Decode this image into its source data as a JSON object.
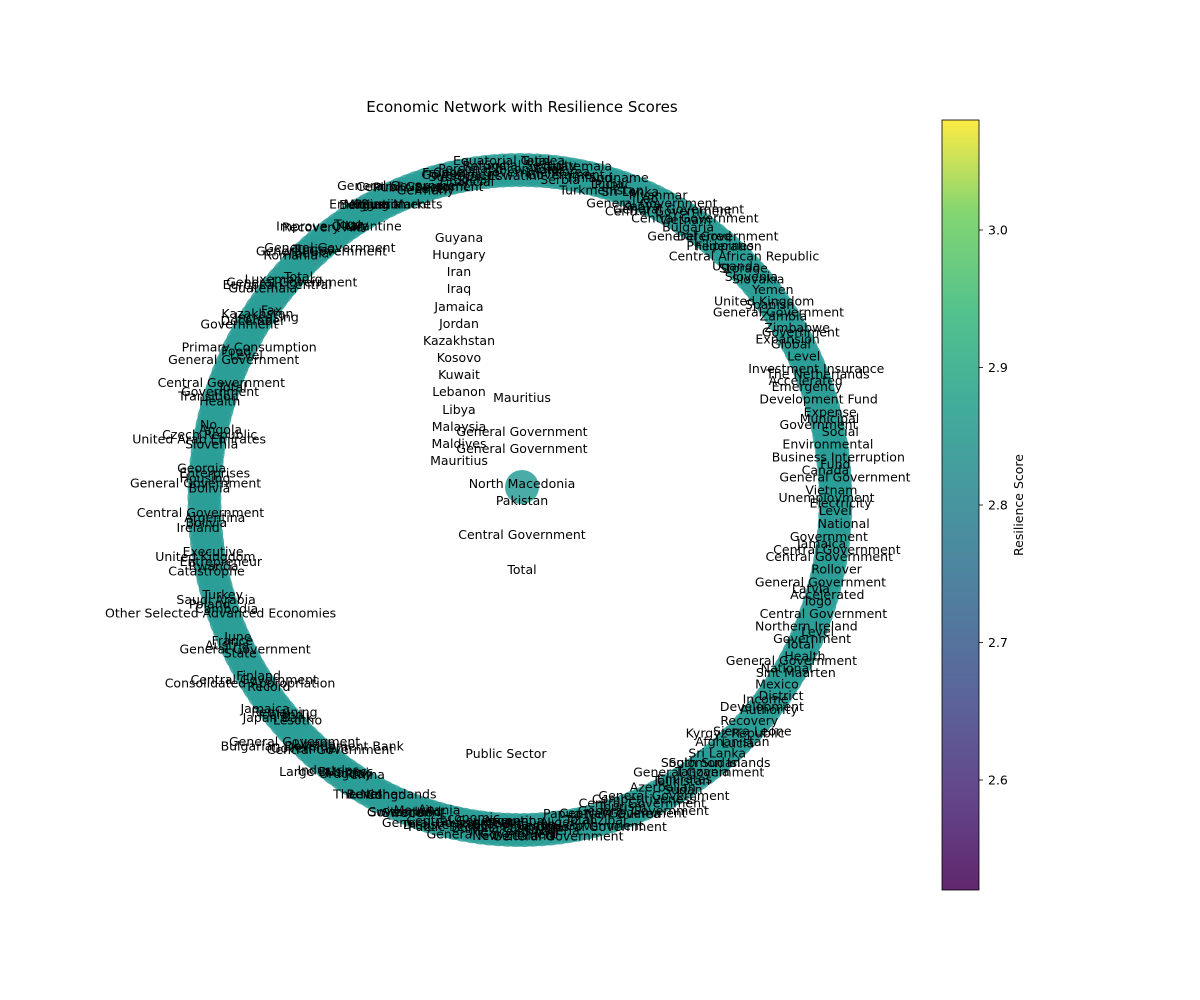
{
  "chart_data": {
    "type": "network",
    "title": "Economic Network with Resilience Scores",
    "layout": "circular",
    "node_color": "#2a9d96",
    "colorbar": {
      "label": "Resilience Score",
      "range": [
        2.52,
        3.08
      ],
      "ticks": [
        "2.6",
        "2.7",
        "2.8",
        "2.9",
        "3.0"
      ],
      "tick_values": [
        2.6,
        2.7,
        2.8,
        2.9,
        3.0
      ],
      "colormap": "viridis"
    },
    "ring_labels": [
      "Equatorial Guinea",
      "Eswatini",
      "Central Government",
      "Personal Income Tax",
      "Refund",
      "Financial",
      "Social",
      "Subtotal",
      "Government",
      "France",
      "Germany",
      "Level",
      "Public Sector",
      "Central Government",
      "General Government",
      "Emerging Markets",
      "Government",
      "Mitigation",
      "Russia",
      "Belgium",
      "Togo",
      "Italy",
      "Improve Quarantine",
      "Recovery Aid",
      "General Government",
      "Tunisia",
      "General Government",
      "Albania",
      "Romania",
      "Total",
      "Luxembourg",
      "General Government",
      "European Central",
      "Guatemala",
      "Fax",
      "Kazakhstan",
      "Increasing",
      "December",
      "Government",
      "Primary Consumption",
      "Food",
      "Level",
      "General Government",
      "Central Government",
      "Total",
      "Government",
      "Transition",
      "Health",
      "No",
      "Angola",
      "Czech Republic",
      "United Arab Emirates",
      "Slovenia",
      "Georgia",
      "Enterprises",
      "Housing",
      "General Government",
      "Bolivia",
      "Central Government",
      "Argentina",
      "Bolivia",
      "Ireland",
      "Executive",
      "United Kingdom",
      "Entrepreneur",
      "Rwanda",
      "Catastrophe",
      "Turkey",
      "Saudi Arabia",
      "Poland",
      "Cambodia",
      "Other Selected Advanced Economies",
      "June",
      "France",
      "Austria",
      "General Government",
      "State",
      "Finland",
      "Central Government",
      "Consolidated Appropriation",
      "Record",
      "Jamaica",
      "Remaining",
      "Iceland",
      "Japan Bank",
      "Lesotho",
      "General Government",
      "Liberia",
      "Bulgarian Development Bank",
      "Government",
      "Central Government",
      "Industries",
      "Large Business",
      "Malawi",
      "Uruguay",
      "China",
      "Level",
      "Benin",
      "Congo",
      "The Netherlands",
      "Sweden",
      "Government",
      "Switzerland",
      "Mauritania",
      "An",
      "Public Sector",
      "Disaster Relief",
      "General Government",
      "Central Government",
      "Economic",
      "General Government",
      "Mexico",
      "Burkina Faso",
      "Scandinavian",
      "Argentina",
      "New Zealand",
      "Kiribati",
      "Philippines",
      "Niger",
      "General Government",
      "Nigeria",
      "Central Government",
      "Total",
      "Papua New Guinea",
      "General Government",
      "Zanzibar",
      "Central Government",
      "Tourism",
      "Competitiveness",
      "General Government",
      "Central Government",
      "General Government",
      "Azerbaijan",
      "Emirates",
      "Sudan",
      "Tajikistan",
      "Tanzania",
      "South Sudan",
      "General Government",
      "Solomon Islands",
      "Sri Lanka",
      "Lucia",
      "Kyrgyz Republic",
      "Afghanistan",
      "Sierra Leone",
      "Recovery",
      "Authority",
      "Income",
      "Development",
      "District",
      "Mexico",
      "Sint Maarten",
      "General Government",
      "National",
      "Health",
      "Total",
      "Level",
      "Government",
      "Northern Ireland",
      "Central Government",
      "Togo",
      "Latvia",
      "Accelerated",
      "General Government",
      "Rollover",
      "Central Government",
      "Jamaica",
      "Central Government",
      "Government",
      "National",
      "Level",
      "Unemployment",
      "Electricity",
      "Vietnam",
      "General Government",
      "Fund",
      "Canada",
      "Business Interruption",
      "Environmental",
      "Social",
      "Municipal",
      "Government",
      "Expense",
      "Development Fund",
      "Emergency",
      "The Netherlands",
      "Accelerated",
      "Investment Insurance",
      "Level",
      "Global",
      "Government",
      "Expansion",
      "Zimbabwe",
      "Zambia",
      "Spanish",
      "General Government",
      "United Kingdom",
      "Yemen",
      "Slovakia",
      "Storage",
      "Slovenia",
      "Uganda",
      "Central African Republic",
      "Federation",
      "General Government",
      "Philippines",
      "Deferred",
      "Bulgaria",
      "Central Government",
      "General Government",
      "Vietnam",
      "Central Government",
      "General Government",
      "Myanmar",
      "Kenya",
      "Lao",
      "Sri Lanka",
      "Public",
      "Suriname",
      "Turkmenistan",
      "Lucia",
      "Finland",
      "Korea",
      "Guatemala",
      "Serbia",
      "Government",
      "Total",
      "Social Security",
      "Total"
    ],
    "center_labels": [
      "Guyana",
      "Hungary",
      "Iran",
      "Iraq",
      "Jamaica",
      "Jordan",
      "Kazakhstan",
      "Kosovo",
      "Kuwait",
      "Lebanon",
      "Libya",
      "Malaysia",
      "Maldives",
      "Mauritius",
      "Mauritius",
      "General Government",
      "General Government",
      "North Macedonia",
      "Pakistan",
      "Central Government",
      "Total",
      "Public Sector",
      "Total"
    ]
  }
}
